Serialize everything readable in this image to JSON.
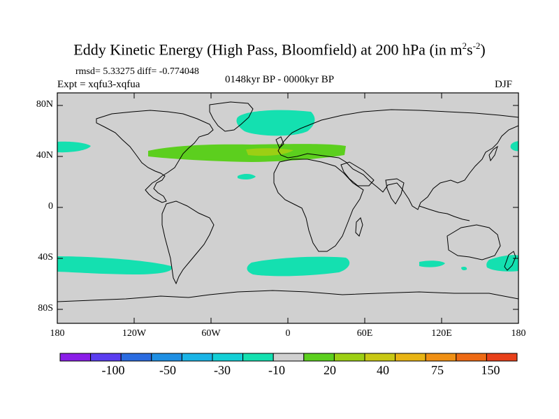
{
  "title": {
    "main": "Eddy Kinetic Energy (High Pass, Bloomfield) at 200 hPa (in m",
    "unit_sup1": "2",
    "unit_s": "s",
    "unit_sup2": "-2",
    "close": ")"
  },
  "stats": "rmsd= 5.33275 diff= -0.774048",
  "experiment": "Expt = xqfu3-xqfua",
  "period": "0148kyr BP - 0000kyr BP",
  "season": "DJF",
  "y_ticks": [
    "80N",
    "40N",
    "0",
    "40S",
    "80S"
  ],
  "x_ticks": [
    "180",
    "120W",
    "60W",
    "0",
    "60E",
    "120E",
    "180"
  ],
  "legend": {
    "colors": [
      "#8a1de8",
      "#5a3df0",
      "#2a6be0",
      "#1e8fe3",
      "#1ab4e6",
      "#14cfd6",
      "#14e0b0",
      "#d0d0d0",
      "#5ccf1e",
      "#9ccf14",
      "#c8c814",
      "#e8b414",
      "#f09014",
      "#ee6a14",
      "#e8401a"
    ],
    "labels": [
      "-100",
      "-50",
      "-30",
      "-10",
      "20",
      "40",
      "75",
      "150"
    ]
  },
  "colors": {
    "land_sea": "#d0d0d0",
    "positive_fill": "#5ccf1e",
    "positive_strong": "#9ccf14",
    "negative_fill": "#14e0b0"
  }
}
